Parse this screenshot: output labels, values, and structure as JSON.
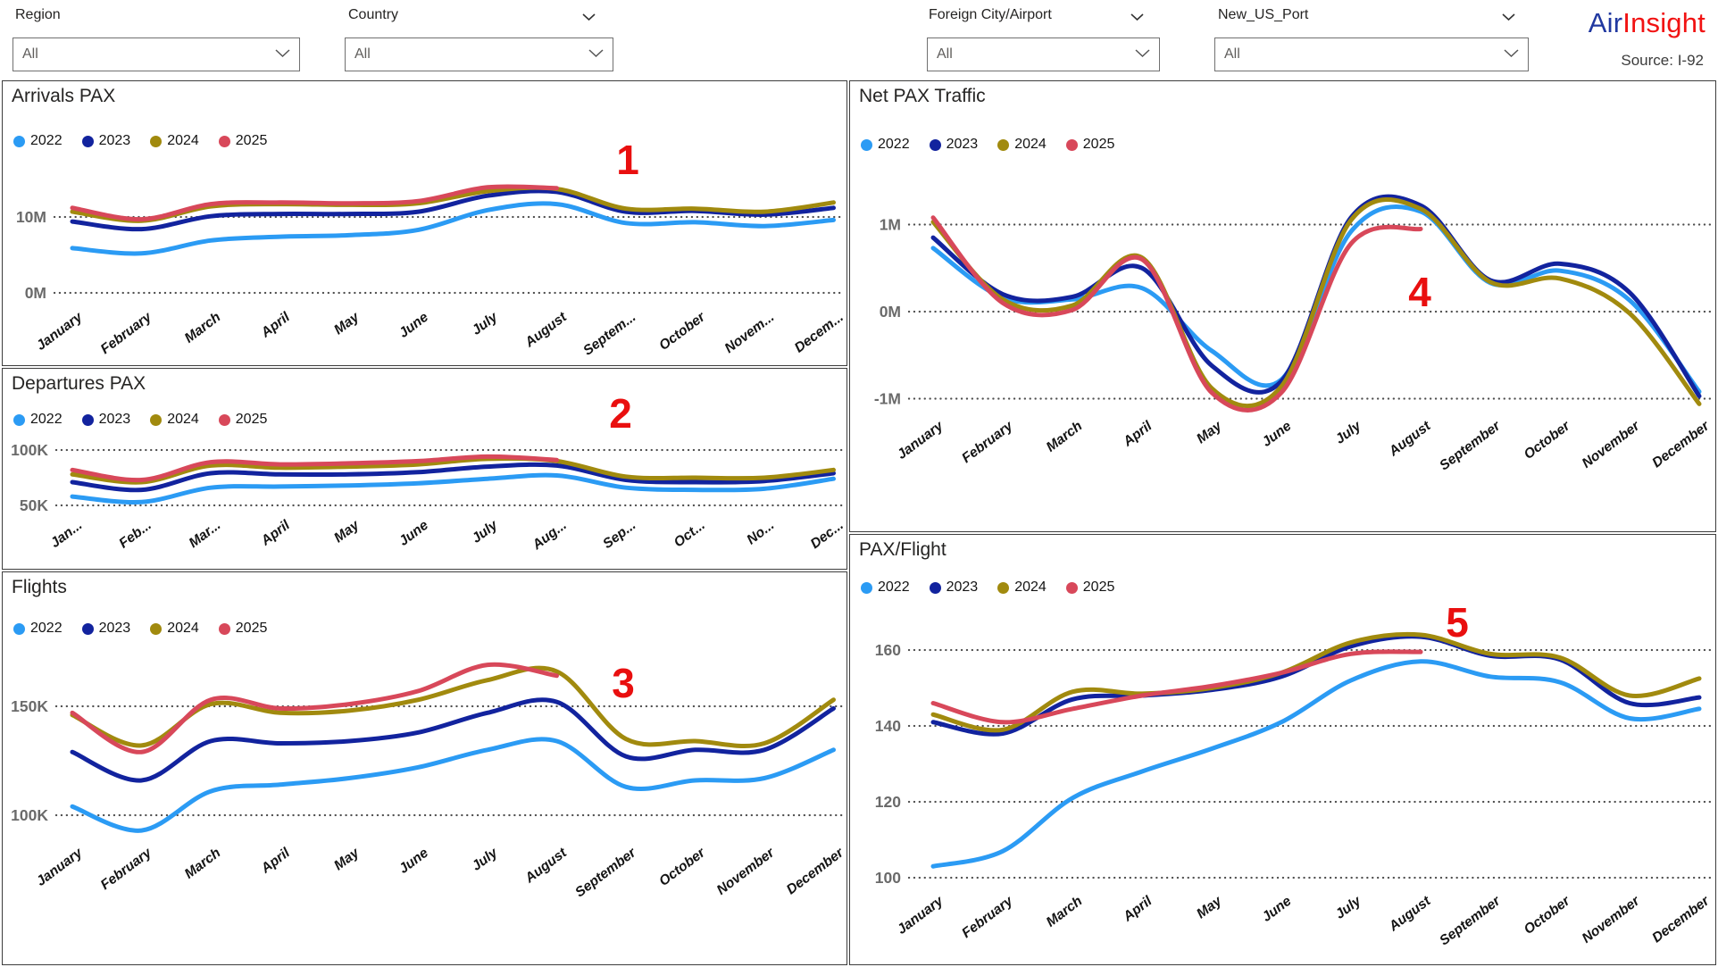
{
  "filters": {
    "region": {
      "label": "Region",
      "value": "All",
      "has_label_chevron": false
    },
    "country": {
      "label": "Country",
      "value": "All",
      "has_label_chevron": true
    },
    "foreign_city_airport": {
      "label": "Foreign City/Airport",
      "value": "All",
      "has_label_chevron": true
    },
    "new_us_port": {
      "label": "New_US_Port",
      "value": "All",
      "has_label_chevron": true
    }
  },
  "brand": {
    "name_primary": "Air",
    "name_secondary": "Insight",
    "primary_color": "#2038A0",
    "secondary_color": "#F11212",
    "source": "Source: I-92"
  },
  "legend_years": [
    "2022",
    "2023",
    "2024",
    "2025"
  ],
  "series_colors": {
    "2022": "#2B9BF4",
    "2023": "#12239E",
    "2024": "#A18A0E",
    "2025": "#D8485A"
  },
  "annotation_color": "#E90F0F",
  "grid_color": "#4d4d4d",
  "axis_label_color": "#6a6a6a",
  "chart_data": [
    {
      "id": "arrivals",
      "type": "line",
      "title": "Arrivals PAX",
      "unit": "M",
      "ylim": [
        0,
        14.5
      ],
      "annotation": "1",
      "y_ticks": [
        {
          "label": "10M",
          "value": 10
        },
        {
          "label": "0M",
          "value": 0
        }
      ],
      "x_labels": [
        "January",
        "February",
        "March",
        "April",
        "May",
        "June",
        "July",
        "August",
        "Septem...",
        "October",
        "Novem...",
        "Decem..."
      ],
      "series": [
        {
          "name": "2022",
          "values": [
            5.9,
            5.2,
            6.9,
            7.4,
            7.6,
            8.3,
            10.9,
            11.7,
            9.2,
            9.3,
            8.8,
            9.6
          ]
        },
        {
          "name": "2023",
          "values": [
            9.4,
            8.4,
            10.1,
            10.4,
            10.4,
            10.7,
            12.8,
            13.3,
            10.7,
            10.8,
            10.3,
            11.2
          ]
        },
        {
          "name": "2024",
          "values": [
            10.7,
            9.5,
            11.4,
            11.7,
            11.6,
            11.8,
            13.4,
            13.7,
            11.1,
            11.1,
            10.7,
            11.9
          ]
        },
        {
          "name": "2025",
          "values": [
            11.2,
            9.7,
            11.7,
            11.9,
            11.8,
            12.1,
            13.9,
            13.8
          ]
        }
      ]
    },
    {
      "id": "departures",
      "type": "line",
      "title": "Departures PAX",
      "unit": "K",
      "ylim": [
        45,
        100
      ],
      "annotation": "2",
      "y_ticks": [
        {
          "label": "100K",
          "value": 100
        },
        {
          "label": "50K",
          "value": 50
        }
      ],
      "x_labels": [
        "Jan...",
        "Feb...",
        "Mar...",
        "April",
        "May",
        "June",
        "July",
        "Aug...",
        "Sep...",
        "Oct...",
        "No...",
        "Dec..."
      ],
      "series": [
        {
          "name": "2022",
          "values": [
            58,
            53,
            66,
            67,
            68,
            70,
            74,
            77,
            66,
            64,
            65,
            74
          ]
        },
        {
          "name": "2023",
          "values": [
            71,
            64,
            79,
            78,
            78,
            80,
            85,
            86,
            73,
            71,
            72,
            79
          ]
        },
        {
          "name": "2024",
          "values": [
            78,
            71,
            86,
            84,
            85,
            87,
            92,
            90,
            76,
            75,
            75,
            82
          ]
        },
        {
          "name": "2025",
          "values": [
            82,
            73,
            89,
            87,
            88,
            90,
            94,
            91
          ]
        }
      ]
    },
    {
      "id": "flights",
      "type": "line",
      "title": "Flights",
      "unit": "K",
      "ylim": [
        85,
        175
      ],
      "annotation": "3",
      "y_ticks": [
        {
          "label": "150K",
          "value": 150
        },
        {
          "label": "100K",
          "value": 100
        }
      ],
      "x_labels": [
        "January",
        "February",
        "March",
        "April",
        "May",
        "June",
        "July",
        "August",
        "September",
        "October",
        "November",
        "December"
      ],
      "series": [
        {
          "name": "2022",
          "values": [
            104,
            93,
            111,
            114,
            117,
            122,
            130,
            134,
            113,
            116,
            117,
            130
          ]
        },
        {
          "name": "2023",
          "values": [
            129,
            116,
            134,
            133,
            134,
            138,
            147,
            152,
            127,
            130,
            130,
            149
          ]
        },
        {
          "name": "2024",
          "values": [
            146,
            132,
            151,
            147,
            148,
            153,
            162,
            166,
            135,
            134,
            133,
            153
          ]
        },
        {
          "name": "2025",
          "values": [
            147,
            129,
            153,
            149,
            151,
            157,
            169,
            164
          ]
        }
      ]
    },
    {
      "id": "net_pax",
      "type": "line",
      "title": "Net PAX Traffic",
      "unit": "M",
      "ylim": [
        -1.2,
        1.35
      ],
      "annotation": "4",
      "y_ticks": [
        {
          "label": "1M",
          "value": 1
        },
        {
          "label": "0M",
          "value": 0
        },
        {
          "label": "-1M",
          "value": -1
        }
      ],
      "x_labels": [
        "January",
        "February",
        "March",
        "April",
        "May",
        "June",
        "July",
        "August",
        "September",
        "October",
        "November",
        "December"
      ],
      "series": [
        {
          "name": "2022",
          "values": [
            0.73,
            0.16,
            0.14,
            0.27,
            -0.45,
            -0.78,
            0.92,
            1.15,
            0.33,
            0.47,
            0.13,
            -0.92
          ]
        },
        {
          "name": "2023",
          "values": [
            0.85,
            0.2,
            0.17,
            0.5,
            -0.62,
            -0.8,
            1.08,
            1.22,
            0.36,
            0.55,
            0.22,
            -0.97
          ]
        },
        {
          "name": "2024",
          "values": [
            1.03,
            0.14,
            0.07,
            0.62,
            -0.88,
            -0.86,
            1.05,
            1.18,
            0.34,
            0.38,
            -0.02,
            -1.06
          ]
        },
        {
          "name": "2025",
          "values": [
            1.08,
            0.1,
            0.02,
            0.6,
            -0.93,
            -0.93,
            0.78,
            0.95
          ]
        }
      ]
    },
    {
      "id": "pax_flight",
      "type": "line",
      "title": "PAX/Flight",
      "unit": "",
      "ylim": [
        95,
        170
      ],
      "annotation": "5",
      "y_ticks": [
        {
          "label": "160",
          "value": 160
        },
        {
          "label": "140",
          "value": 140
        },
        {
          "label": "120",
          "value": 120
        },
        {
          "label": "100",
          "value": 100
        }
      ],
      "x_labels": [
        "January",
        "February",
        "March",
        "April",
        "May",
        "June",
        "July",
        "August",
        "September",
        "October",
        "November",
        "December"
      ],
      "series": [
        {
          "name": "2022",
          "values": [
            103,
            107,
            121,
            128,
            134,
            141,
            152,
            157,
            153,
            151.5,
            142,
            144.5
          ]
        },
        {
          "name": "2023",
          "values": [
            141,
            138,
            147,
            148,
            149.5,
            153,
            161,
            163.5,
            158.5,
            157.5,
            146,
            147.5
          ]
        },
        {
          "name": "2024",
          "values": [
            143,
            139,
            149,
            148.5,
            150,
            154,
            162,
            164,
            159,
            158,
            148,
            152.5
          ]
        },
        {
          "name": "2025",
          "values": [
            146,
            141,
            144.5,
            148,
            150.5,
            154,
            159,
            159.5
          ]
        }
      ]
    }
  ]
}
